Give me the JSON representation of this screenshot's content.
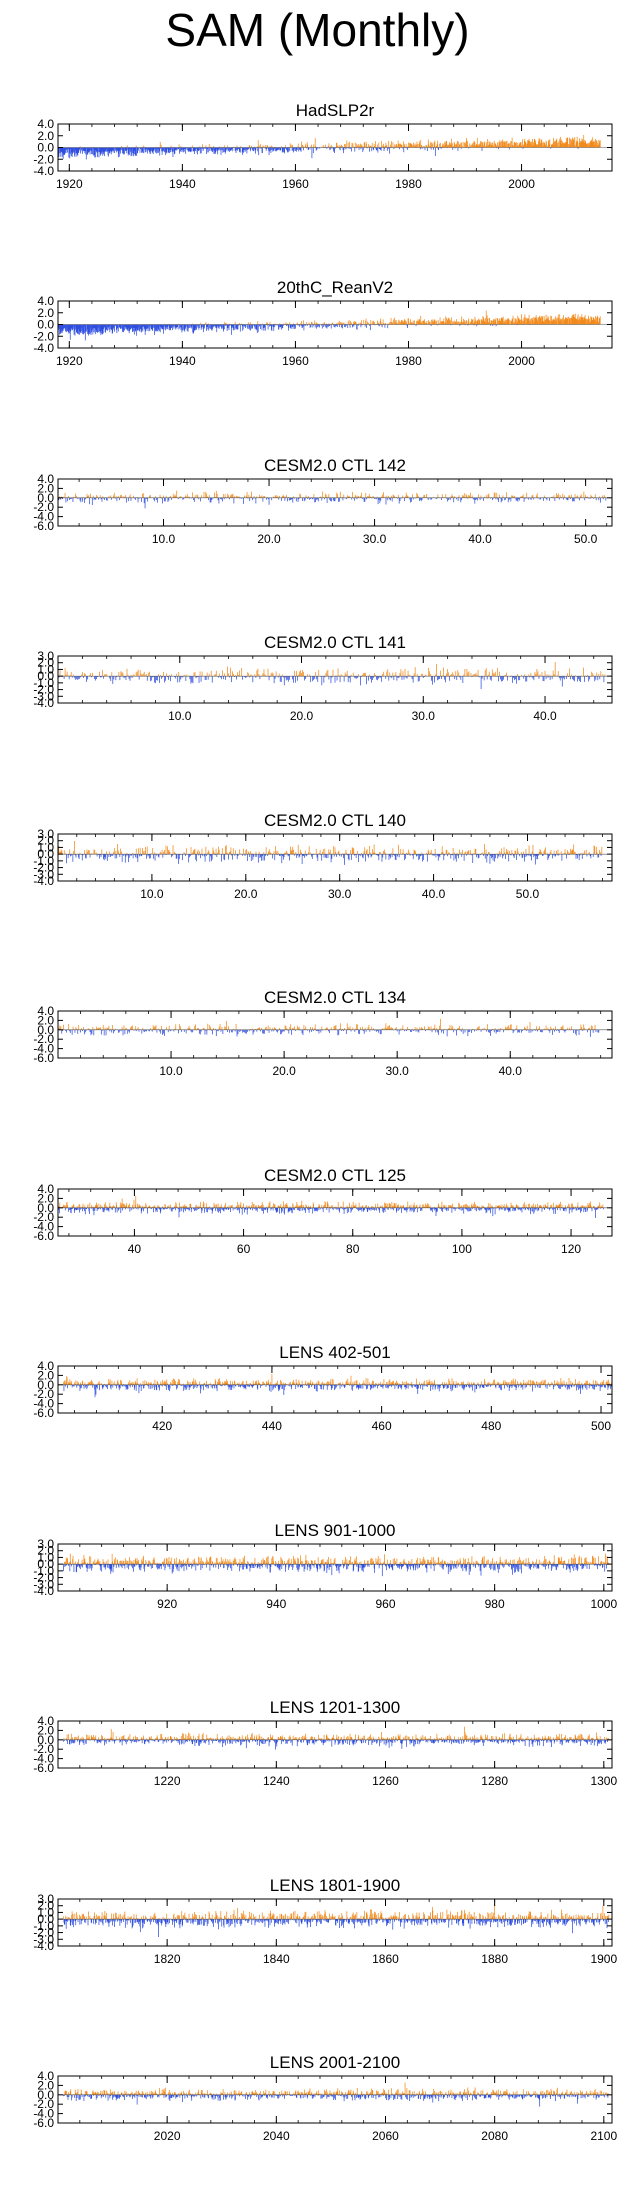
{
  "page_title": "SAM (Monthly)",
  "colors": {
    "positive": "#f28a1c",
    "negative": "#2f4fe0",
    "axis": "#000000"
  },
  "chart_data": [
    {
      "type": "bar",
      "title": "HadSLP2r",
      "xlim": [
        1918,
        2016
      ],
      "ylim": [
        -4.0,
        4.0
      ],
      "yticks": [
        "4.0",
        "2.0",
        "0.0",
        "-2.0",
        "-4.0"
      ],
      "ytick_values": [
        4,
        2,
        0,
        -2,
        -4
      ],
      "xticks": [
        "1920",
        "1940",
        "1960",
        "1980",
        "2000"
      ],
      "xtick_values": [
        1920,
        1940,
        1960,
        1980,
        2000
      ],
      "series_profile": {
        "style": "observed-hadslp",
        "months": 1152,
        "start": 1918,
        "end": 2014
      }
    },
    {
      "type": "bar",
      "title": "20thC_ReanV2",
      "xlim": [
        1918,
        2016
      ],
      "ylim": [
        -4.0,
        4.0
      ],
      "yticks": [
        "4.0",
        "2.0",
        "0.0",
        "-2.0",
        "-4.0"
      ],
      "ytick_values": [
        4,
        2,
        0,
        -2,
        -4
      ],
      "xticks": [
        "1920",
        "1940",
        "1960",
        "1980",
        "2000"
      ],
      "xtick_values": [
        1920,
        1940,
        1960,
        1980,
        2000
      ],
      "series_profile": {
        "style": "observed-20c",
        "months": 1152,
        "start": 1918,
        "end": 2014
      }
    },
    {
      "type": "bar",
      "title": "CESM2.0 CTL 142",
      "xlim": [
        0,
        52.5
      ],
      "ylim": [
        -6.0,
        4.0
      ],
      "yticks": [
        "4.0",
        "2.0",
        "0.0",
        "-2.0",
        "-4.0",
        "-6.0"
      ],
      "ytick_values": [
        4,
        2,
        0,
        -2,
        -4,
        -6
      ],
      "xticks": [
        "10.0",
        "20.0",
        "30.0",
        "40.0",
        "50.0"
      ],
      "xtick_values": [
        10,
        20,
        30,
        40,
        50
      ],
      "series_profile": {
        "style": "control",
        "months": 624,
        "start": 0,
        "end": 52
      }
    },
    {
      "type": "bar",
      "title": "CESM2.0 CTL 141",
      "xlim": [
        0,
        45.5
      ],
      "ylim": [
        -4.0,
        3.0
      ],
      "yticks": [
        "3.0",
        "2.0",
        "1.0",
        "0.0",
        "-1.0",
        "-2.0",
        "-3.0",
        "-4.0"
      ],
      "ytick_values": [
        3,
        2,
        1,
        0,
        -1,
        -2,
        -3,
        -4
      ],
      "xticks": [
        "10.0",
        "20.0",
        "30.0",
        "40.0"
      ],
      "xtick_values": [
        10,
        20,
        30,
        40
      ],
      "series_profile": {
        "style": "control",
        "months": 540,
        "start": 0,
        "end": 45
      }
    },
    {
      "type": "bar",
      "title": "CESM2.0 CTL 140",
      "xlim": [
        0,
        59
      ],
      "ylim": [
        -4.0,
        3.0
      ],
      "yticks": [
        "3.0",
        "2.0",
        "1.0",
        "0.0",
        "-1.0",
        "-2.0",
        "-3.0",
        "-4.0"
      ],
      "ytick_values": [
        3,
        2,
        1,
        0,
        -1,
        -2,
        -3,
        -4
      ],
      "xticks": [
        "10.0",
        "20.0",
        "30.0",
        "40.0",
        "50.0"
      ],
      "xtick_values": [
        10,
        20,
        30,
        40,
        50
      ],
      "series_profile": {
        "style": "control",
        "months": 696,
        "start": 0,
        "end": 58
      }
    },
    {
      "type": "bar",
      "title": "CESM2.0 CTL 134",
      "xlim": [
        0,
        49
      ],
      "ylim": [
        -6.0,
        4.0
      ],
      "yticks": [
        "4.0",
        "2.0",
        "0.0",
        "-2.0",
        "-4.0",
        "-6.0"
      ],
      "ytick_values": [
        4,
        2,
        0,
        -2,
        -4,
        -6
      ],
      "xticks": [
        "10.0",
        "20.0",
        "30.0",
        "40.0"
      ],
      "xtick_values": [
        10,
        20,
        30,
        40
      ],
      "series_profile": {
        "style": "control",
        "months": 576,
        "start": 0,
        "end": 48
      }
    },
    {
      "type": "bar",
      "title": "CESM2.0 CTL 125",
      "xlim": [
        26,
        127.5
      ],
      "ylim": [
        -6.0,
        4.0
      ],
      "yticks": [
        "4.0",
        "2.0",
        "0.0",
        "-2.0",
        "-4.0",
        "-6.0"
      ],
      "ytick_values": [
        4,
        2,
        0,
        -2,
        -4,
        -6
      ],
      "xticks": [
        "40",
        "60",
        "80",
        "100",
        "120"
      ],
      "xtick_values": [
        40,
        60,
        80,
        100,
        120
      ],
      "series_profile": {
        "style": "control",
        "months": 1200,
        "start": 26,
        "end": 126
      }
    },
    {
      "type": "bar",
      "title": "LENS 402-501",
      "xlim": [
        401,
        502
      ],
      "ylim": [
        -6.0,
        4.0
      ],
      "yticks": [
        "4.0",
        "2.0",
        "0.0",
        "-2.0",
        "-4.0",
        "-6.0"
      ],
      "ytick_values": [
        4,
        2,
        0,
        -2,
        -4,
        -6
      ],
      "xticks": [
        "420",
        "440",
        "460",
        "480",
        "500"
      ],
      "xtick_values": [
        420,
        440,
        460,
        480,
        500
      ],
      "series_profile": {
        "style": "control",
        "months": 1200,
        "start": 402,
        "end": 502
      }
    },
    {
      "type": "bar",
      "title": "LENS 901-1000",
      "xlim": [
        900,
        1001.5
      ],
      "ylim": [
        -4.0,
        3.0
      ],
      "yticks": [
        "3.0",
        "2.0",
        "1.0",
        "0.0",
        "-1.0",
        "-2.0",
        "-3.0",
        "-4.0"
      ],
      "ytick_values": [
        3,
        2,
        1,
        0,
        -1,
        -2,
        -3,
        -4
      ],
      "xticks": [
        "920",
        "940",
        "960",
        "980",
        "1000"
      ],
      "xtick_values": [
        920,
        940,
        960,
        980,
        1000
      ],
      "series_profile": {
        "style": "control",
        "months": 1200,
        "start": 901,
        "end": 1001
      }
    },
    {
      "type": "bar",
      "title": "LENS 1201-1300",
      "xlim": [
        1200,
        1301.5
      ],
      "ylim": [
        -6.0,
        4.0
      ],
      "yticks": [
        "4.0",
        "2.0",
        "0.0",
        "-2.0",
        "-4.0",
        "-6.0"
      ],
      "ytick_values": [
        4,
        2,
        0,
        -2,
        -4,
        -6
      ],
      "xticks": [
        "1220",
        "1240",
        "1260",
        "1280",
        "1300"
      ],
      "xtick_values": [
        1220,
        1240,
        1260,
        1280,
        1300
      ],
      "series_profile": {
        "style": "control",
        "months": 1200,
        "start": 1201,
        "end": 1301
      }
    },
    {
      "type": "bar",
      "title": "LENS 1801-1900",
      "xlim": [
        1800,
        1901.5
      ],
      "ylim": [
        -4.0,
        3.0
      ],
      "yticks": [
        "3.0",
        "2.0",
        "1.0",
        "0.0",
        "-1.0",
        "-2.0",
        "-3.0",
        "-4.0"
      ],
      "ytick_values": [
        3,
        2,
        1,
        0,
        -1,
        -2,
        -3,
        -4
      ],
      "xticks": [
        "1820",
        "1840",
        "1860",
        "1880",
        "1900"
      ],
      "xtick_values": [
        1820,
        1840,
        1860,
        1880,
        1900
      ],
      "series_profile": {
        "style": "control",
        "months": 1200,
        "start": 1801,
        "end": 1901
      }
    },
    {
      "type": "bar",
      "title": "LENS 2001-2100",
      "xlim": [
        2000,
        2101.5
      ],
      "ylim": [
        -6.0,
        4.0
      ],
      "yticks": [
        "4.0",
        "2.0",
        "0.0",
        "-2.0",
        "-4.0",
        "-6.0"
      ],
      "ytick_values": [
        4,
        2,
        0,
        -2,
        -4,
        -6
      ],
      "xticks": [
        "2020",
        "2040",
        "2060",
        "2080",
        "2100"
      ],
      "xtick_values": [
        2020,
        2040,
        2060,
        2080,
        2100
      ],
      "series_profile": {
        "style": "control",
        "months": 1200,
        "start": 2001,
        "end": 2101
      }
    }
  ]
}
